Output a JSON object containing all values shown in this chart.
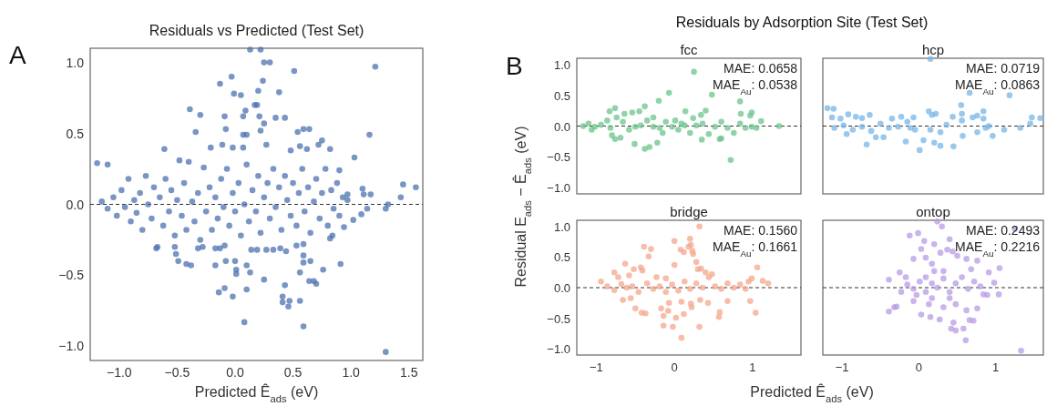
{
  "chart_data": [
    {
      "type": "scatter",
      "title": "Residuals vs Predicted (Test Set)",
      "xlabel": "Predicted Ê$_{ads}$ (eV)",
      "annotations": [
        "A"
      ],
      "color": "#4c72b0",
      "marker": "circle",
      "x": [
        0.13,
        0.22,
        0.25,
        0.3,
        1.21,
        0.51,
        -0.03,
        -0.13,
        0.24,
        -0.01,
        0.05,
        0.2,
        0.38,
        -0.39,
        0.17,
        0.19,
        -0.3,
        0.09,
        -0.09,
        0.07,
        0.21,
        0.35,
        0.43,
        1.16,
        -0.34,
        -0.08,
        0.22,
        0.25,
        0.54,
        0.59,
        0.64,
        0.07,
        0.1,
        -0.61,
        -0.21,
        -0.11,
        -0.02,
        0.07,
        0.27,
        0.48,
        0.56,
        0.62,
        0.75,
        0.72,
        0.82,
        1.03,
        -1.19,
        -1.1,
        1.3,
        0.08,
        0.59,
        0.46,
        0.41,
        0.47,
        0.56,
        0.41,
        -0.02,
        -0.14,
        -0.09,
        0.1,
        0.43,
        0.25,
        0.64,
        0.7,
        0.68,
        0.56,
        0.13,
        0.01,
        0.76,
        0.91,
        -0.42,
        -0.38,
        -0.49,
        0.1,
        0.01,
        -0.08,
        -0.17,
        0.0,
        0.65,
        0.59,
        -0.51,
        -0.52,
        -0.68,
        -0.32,
        -0.28,
        -0.13,
        -0.09,
        -0.17,
        0.14,
        0.19,
        0.27,
        0.33,
        0.39,
        0.44,
        0.53,
        0.59,
        0.59,
        0.82,
        0.84,
        0.94,
        1.02,
        1.09,
        1.14,
        1.3,
        1.32,
        1.43,
        1.45,
        1.56,
        1.1,
        1.11,
        1.17,
        0.97,
        0.97,
        0.9,
        -1.15,
        -1.1,
        -1.05,
        -1.02,
        -0.98,
        -0.95,
        -0.92,
        -0.9,
        -0.87,
        -0.85,
        -0.82,
        -0.8,
        -0.77,
        -0.75,
        -0.72,
        -0.7,
        -0.67,
        -0.65,
        -0.62,
        -0.6,
        -0.57,
        -0.55,
        -0.52,
        -0.5,
        -0.48,
        -0.46,
        -0.44,
        -0.42,
        -0.4,
        -0.37,
        -0.35,
        -0.32,
        -0.3,
        -0.27,
        -0.25,
        -0.22,
        -0.2,
        -0.17,
        -0.15,
        -0.12,
        -0.1,
        -0.07,
        -0.05,
        -0.02,
        0.0,
        0.03,
        0.05,
        0.08,
        0.1,
        0.12,
        0.15,
        0.18,
        0.2,
        0.22,
        0.25,
        0.28,
        0.3,
        0.33,
        0.35,
        0.38,
        0.4,
        0.43,
        0.45,
        0.48,
        0.5,
        0.53,
        0.55,
        0.58,
        0.6,
        0.63,
        0.65,
        0.68,
        0.7,
        0.73,
        0.75,
        0.78,
        0.8,
        0.83,
        0.85,
        0.88,
        0.9,
        0.93
      ],
      "values": [
        1.09,
        1.09,
        1.0,
        1.0,
        0.97,
        0.94,
        0.9,
        0.85,
        0.87,
        0.78,
        0.77,
        0.8,
        0.79,
        0.67,
        0.7,
        0.7,
        0.63,
        0.66,
        0.62,
        0.62,
        0.62,
        0.61,
        0.61,
        0.49,
        0.51,
        0.53,
        0.52,
        0.57,
        0.51,
        0.53,
        0.53,
        0.49,
        0.49,
        0.39,
        0.4,
        0.42,
        0.4,
        0.4,
        0.42,
        0.38,
        0.41,
        0.39,
        0.45,
        0.42,
        0.39,
        0.33,
        0.29,
        0.28,
        -1.04,
        -0.83,
        -0.86,
        -0.72,
        -0.69,
        -0.68,
        -0.68,
        -0.65,
        -0.65,
        -0.62,
        -0.59,
        -0.6,
        -0.57,
        -0.53,
        -0.54,
        -0.56,
        -0.54,
        -0.48,
        -0.48,
        -0.49,
        -0.46,
        -0.42,
        -0.42,
        -0.43,
        -0.4,
        -0.43,
        -0.46,
        -0.4,
        -0.43,
        -0.4,
        -0.4,
        -0.41,
        -0.35,
        -0.3,
        -0.31,
        -0.31,
        -0.3,
        -0.31,
        -0.29,
        -0.31,
        -0.32,
        -0.32,
        -0.32,
        -0.32,
        -0.31,
        -0.33,
        -0.29,
        -0.28,
        -0.36,
        -0.24,
        -0.22,
        -0.16,
        -0.11,
        -0.07,
        -0.03,
        -0.03,
        0.0,
        0.05,
        0.14,
        0.12,
        0.11,
        0.07,
        0.07,
        0.07,
        0.03,
        0.24,
        0.02,
        -0.03,
        0.05,
        -0.08,
        0.1,
        -0.02,
        0.18,
        -0.12,
        0.03,
        -0.06,
        0.08,
        -0.18,
        0.2,
        0.0,
        -0.1,
        0.12,
        -0.3,
        0.05,
        -0.15,
        0.18,
        -0.05,
        0.1,
        -0.22,
        0.03,
        0.31,
        -0.08,
        0.15,
        -0.18,
        0.3,
        0.02,
        -0.12,
        0.08,
        -0.25,
        0.26,
        -0.05,
        0.12,
        -0.18,
        0.05,
        -0.1,
        0.18,
        -0.02,
        0.25,
        -0.15,
        0.08,
        -0.05,
        0.15,
        -0.22,
        0.0,
        0.28,
        -0.12,
        0.1,
        -0.05,
        0.2,
        -0.2,
        0.05,
        0.15,
        -0.1,
        0.25,
        -0.02,
        0.12,
        -0.18,
        0.2,
        0.03,
        -0.08,
        0.15,
        -0.15,
        0.08,
        0.25,
        -0.05,
        0.12,
        -0.2,
        0.02,
        0.18,
        -0.1,
        0.08,
        0.25,
        -0.15,
        0.1,
        -0.03,
        0.15,
        -0.08,
        0.05
      ],
      "xlim": [
        -1.25,
        1.62
      ],
      "ylim": [
        -1.1,
        1.1
      ],
      "xticks": [
        {
          "value": -1,
          "label": "−1.0"
        },
        {
          "value": -0.5,
          "label": "−0.5"
        },
        {
          "value": 0,
          "label": "0.0"
        },
        {
          "value": 0.5,
          "label": "0.5"
        },
        {
          "value": 1,
          "label": "1.0"
        },
        {
          "value": 1.5,
          "label": "1.5"
        }
      ],
      "yticks": [
        {
          "value": -1,
          "label": "−1.0"
        },
        {
          "value": -0.5,
          "label": "−0.5"
        },
        {
          "value": 0,
          "label": "0.0"
        },
        {
          "value": 0.5,
          "label": "0.5"
        },
        {
          "value": 1,
          "label": "1.0"
        }
      ],
      "ref_lines": [
        {
          "axis": "y",
          "value": 0,
          "color": "#333333",
          "line_style": "dashed"
        }
      ]
    },
    {
      "type": "scatter",
      "title": "fcc",
      "ylabel": "Residual E$_{ads}$ − Ê$_{ads}$ (eV)",
      "annotations": [
        "B",
        "Residuals by Adsorption Site (Test Set)",
        "MAE: 0.0658",
        "MAE$_{Au}$: 0.0538"
      ],
      "color": "#6cc48c",
      "marker": "circle",
      "tick_labels": "y",
      "x": [
        0.25,
        -0.07,
        0.48,
        -0.2,
        0.84,
        0.72,
        -0.51,
        -0.38,
        -0.32,
        -0.22,
        0.35,
        0.58,
        0.6,
        -0.76,
        -0.69,
        -0.8,
        -0.38,
        -0.76,
        -0.83,
        -0.54,
        -0.45,
        -0.64,
        0.14,
        0.4,
        0.34,
        0.24,
        0.85,
        0.97,
        0.99,
        1.11,
        1.34,
        -1.17,
        -1.1,
        -1.02,
        -0.94,
        -1.06,
        -0.86,
        -0.82,
        -0.66,
        -0.58,
        -0.43,
        -0.35,
        -0.27,
        -0.19,
        -0.11,
        -0.03,
        0.05,
        0.13,
        0.2,
        0.28,
        0.36,
        0.44,
        0.52,
        0.6,
        0.68,
        0.76,
        0.84,
        0.91,
        0.99,
        1.05,
        -0.74,
        -0.5,
        -0.27,
        -0.15,
        0.01,
        0.09
      ],
      "values": [
        0.88,
        0.54,
        0.51,
        0.41,
        0.4,
        -0.55,
        -0.29,
        -0.37,
        -0.34,
        -0.27,
        -0.22,
        -0.21,
        -0.2,
        -0.21,
        -0.19,
        -0.15,
        0.32,
        0.29,
        0.24,
        0.22,
        0.24,
        0.2,
        0.24,
        0.25,
        0.18,
        0.13,
        0.2,
        0.17,
        0.22,
        0.08,
        0.0,
        0.0,
        0.04,
        -0.01,
        0.02,
        -0.06,
        0.09,
        -0.03,
        0.07,
        -0.06,
        0.01,
        0.09,
        -0.01,
        -0.03,
        0.07,
        -0.01,
        -0.06,
        0.01,
        -0.11,
        0.01,
        0.04,
        -0.13,
        -0.01,
        0.07,
        -0.03,
        -0.11,
        0.04,
        -0.03,
        -0.01,
        -0.03,
        0.14,
        -0.01,
        0.14,
        -0.11,
        0.09,
        0.04
      ],
      "xlim": [
        -1.25,
        1.62
      ],
      "ylim": [
        -1.1,
        1.1
      ],
      "yticks": [
        {
          "value": -1,
          "label": "−1.0"
        },
        {
          "value": -0.5,
          "label": "−0.5"
        },
        {
          "value": 0,
          "label": "0.0"
        },
        {
          "value": 0.5,
          "label": "0.5"
        },
        {
          "value": 1,
          "label": "1.0"
        }
      ],
      "ref_lines": [
        {
          "axis": "y",
          "value": 0,
          "color": "#333333",
          "line_style": "dashed"
        }
      ]
    },
    {
      "type": "scatter",
      "title": "hcp",
      "annotations": [
        "MAE: 0.0719",
        "MAE$_{Au}$: 0.0863"
      ],
      "color": "#78b5e6",
      "marker": "circle",
      "tick_labels": false,
      "x": [
        0.15,
        0.66,
        1.18,
        0.55,
        -1.19,
        -1.11,
        -1.13,
        -1.02,
        -0.92,
        -0.82,
        -0.74,
        -0.64,
        -0.68,
        -0.17,
        0.01,
        0.06,
        0.2,
        0.28,
        0.45,
        0.57,
        0.96,
        1.11,
        1.32,
        1.47,
        1.58,
        1.45,
        0.13,
        0.17,
        0.22,
        0.44,
        0.56,
        0.56,
        0.7,
        0.76,
        0.84,
        0.84,
        0.76,
        0.87,
        0.91,
        0.36,
        0.28,
        0.15,
        -0.07,
        -0.05,
        -1.1,
        -0.98,
        -0.86,
        -0.74,
        -0.62,
        -0.5,
        -0.39,
        -0.27,
        -0.15,
        -0.11,
        -0.94,
        -0.46,
        -0.56,
        -0.35,
        -0.23
      ],
      "values": [
        1.09,
        0.54,
        0.5,
        0.34,
        0.29,
        0.28,
        0.14,
        0.12,
        0.19,
        0.15,
        0.13,
        0.18,
        -0.3,
        -0.25,
        -0.39,
        -0.23,
        -0.27,
        -0.32,
        -0.33,
        -0.16,
        -0.16,
        -0.06,
        -0.03,
        0.14,
        0.13,
        0.04,
        0.24,
        0.18,
        0.2,
        0.15,
        0.2,
        0.09,
        0.14,
        0.17,
        0.24,
        0.12,
        -0.1,
        -0.03,
        0.0,
        0.02,
        -0.1,
        -0.06,
        0.14,
        -0.06,
        -0.03,
        0.01,
        -0.06,
        -0.01,
        -0.08,
        0.04,
        -0.03,
        -0.01,
        0.07,
        -0.03,
        -0.13,
        -0.18,
        -0.18,
        0.12,
        0.15
      ],
      "xlim": [
        -1.25,
        1.62
      ],
      "ylim": [
        -1.1,
        1.1
      ],
      "ref_lines": [
        {
          "axis": "y",
          "value": 0,
          "color": "#333333",
          "line_style": "dashed"
        }
      ]
    },
    {
      "type": "scatter",
      "title": "bridge",
      "xlabel": "Predicted Ê$_{ads}$ (eV)",
      "annotations": [
        "MAE: 0.1560",
        "MAE$_{Au}$: 0.1661"
      ],
      "color": "#f4a78c",
      "marker": "circle",
      "x": [
        0.32,
        0.2,
        0.0,
        0.08,
        0.12,
        0.23,
        0.24,
        0.21,
        0.18,
        -0.39,
        -0.3,
        -0.33,
        -0.63,
        -0.43,
        -0.52,
        -0.41,
        0.0,
        0.28,
        0.34,
        0.3,
        1.06,
        0.99,
        1.13,
        1.2,
        -0.94,
        -0.86,
        -0.77,
        -0.68,
        -0.61,
        -0.77,
        -0.72,
        -0.58,
        -0.23,
        -0.11,
        -0.5,
        -0.42,
        -0.37,
        -0.66,
        -0.56,
        -0.17,
        -0.08,
        -0.14,
        -0.07,
        0.02,
        -0.02,
        -0.14,
        0.09,
        0.09,
        0.12,
        0.21,
        0.22,
        0.32,
        0.43,
        0.33,
        0.58,
        0.57,
        0.68,
        0.97,
        1.04,
        -0.54,
        -0.46,
        -0.35,
        -0.27,
        -0.19,
        -0.11,
        -0.03,
        0.05,
        0.13,
        0.2,
        0.28,
        0.36,
        0.44,
        0.52,
        0.6,
        0.68,
        0.76,
        0.84,
        0.91,
        0.95,
        0.4,
        0.48
      ],
      "values": [
        1.0,
        0.8,
        0.76,
        0.62,
        0.58,
        0.6,
        0.55,
        0.7,
        0.67,
        0.67,
        0.63,
        0.51,
        0.39,
        0.33,
        0.3,
        0.28,
        0.37,
        0.42,
        0.31,
        0.3,
        0.33,
        0.15,
        0.11,
        0.07,
        0.1,
        0.02,
        -0.04,
        0.06,
        0.0,
        0.25,
        0.17,
        0.2,
        0.17,
        0.15,
        -0.34,
        -0.41,
        -0.42,
        -0.2,
        -0.17,
        -0.34,
        -0.38,
        -0.46,
        -0.25,
        -0.49,
        -0.64,
        -0.62,
        -0.23,
        -0.82,
        -0.43,
        -0.26,
        -0.32,
        -0.64,
        -0.25,
        -0.2,
        -0.4,
        -0.48,
        -0.22,
        -0.22,
        -0.41,
        0.02,
        -0.07,
        0.07,
        -0.02,
        0.02,
        -0.07,
        0.05,
        -0.05,
        0.1,
        -0.02,
        0.07,
        0.0,
        0.17,
        0.02,
        -0.02,
        0.07,
        0.0,
        0.05,
        -0.02,
        0.1,
        0.25,
        0.22
      ],
      "xlim": [
        -1.25,
        1.62
      ],
      "ylim": [
        -1.1,
        1.1
      ],
      "xticks": [
        {
          "value": -1,
          "label": "−1"
        },
        {
          "value": 0,
          "label": "0"
        },
        {
          "value": 1,
          "label": "1"
        }
      ],
      "yticks": [
        {
          "value": -1,
          "label": "−1.0"
        },
        {
          "value": -0.5,
          "label": "−0.5"
        },
        {
          "value": 0,
          "label": "0.0"
        },
        {
          "value": 0.5,
          "label": "0.5"
        },
        {
          "value": 1,
          "label": "1.0"
        }
      ],
      "ref_lines": [
        {
          "axis": "y",
          "value": 0,
          "color": "#333333",
          "line_style": "dashed"
        }
      ]
    },
    {
      "type": "scatter",
      "title": "ontop",
      "annotations": [
        "MAE: 0.2493",
        "MAE$_{Au}$: 0.2216"
      ],
      "color": "#b89be6",
      "marker": "circle",
      "tick_labels": "x",
      "x": [
        1.33,
        1.25,
        0.24,
        0.3,
        -0.12,
        -0.01,
        0.07,
        0.2,
        0.4,
        0.03,
        0.28,
        0.37,
        0.44,
        -0.07,
        0.09,
        0.17,
        0.5,
        0.62,
        0.76,
        1.05,
        -0.39,
        -0.25,
        -0.17,
        0.91,
        0.98,
        1.04,
        0.89,
        0.84,
        -0.39,
        -0.29,
        -0.32,
        0.03,
        0.15,
        0.27,
        0.45,
        0.42,
        0.48,
        0.58,
        0.61,
        0.66,
        0.71,
        0.62,
        0.76,
        -0.07,
        0.13,
        0.32,
        0.48,
        -0.23,
        -0.15,
        -0.07,
        0.01,
        0.09,
        0.17,
        0.24,
        0.32,
        0.4,
        0.48,
        0.56,
        0.64,
        0.72,
        0.8,
        0.32,
        0.2,
        0.09,
        -0.03,
        0.17,
        0.4,
        0.68
      ],
      "values": [
        -1.03,
        0.96,
        1.08,
        1.0,
        0.85,
        0.89,
        0.76,
        0.71,
        0.79,
        0.63,
        0.57,
        0.62,
        0.59,
        0.47,
        0.49,
        0.39,
        0.52,
        0.47,
        0.44,
        0.32,
        0.13,
        0.25,
        0.17,
        0.25,
        0.08,
        -0.11,
        -0.12,
        -0.11,
        -0.39,
        -0.31,
        -0.32,
        -0.44,
        -0.48,
        -0.52,
        -0.57,
        -0.67,
        -0.7,
        -0.67,
        -0.86,
        -0.53,
        -0.54,
        -0.37,
        -0.34,
        -0.22,
        -0.27,
        -0.32,
        -0.27,
        -0.07,
        0.05,
        -0.02,
        0.1,
        -0.07,
        0.07,
        0.0,
        0.15,
        -0.07,
        0.07,
        0.17,
        -0.02,
        0.1,
        0.02,
        0.27,
        0.27,
        0.17,
        -0.12,
        -0.17,
        -0.17,
        0.3
      ],
      "xlim": [
        -1.25,
        1.62
      ],
      "ylim": [
        -1.1,
        1.1
      ],
      "xticks": [
        {
          "value": -1,
          "label": "−1"
        },
        {
          "value": 0,
          "label": "0"
        },
        {
          "value": 1,
          "label": "1"
        }
      ],
      "ref_lines": [
        {
          "axis": "y",
          "value": 0,
          "color": "#333333",
          "line_style": "dashed"
        }
      ]
    }
  ]
}
